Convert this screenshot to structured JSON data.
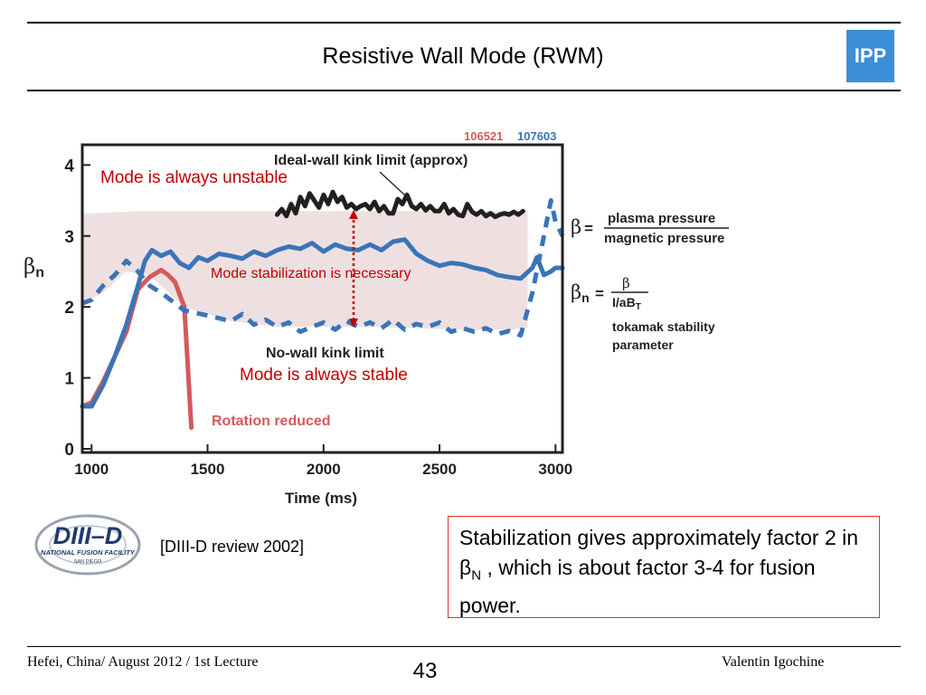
{
  "slide": {
    "title": "Resistive Wall Mode (RWM)",
    "logo_text": "IPP",
    "citation": "[DIII-D review 2002]",
    "summary": {
      "text_before": "Stabilization gives approximately factor 2 in β",
      "subscript": "N",
      "text_after": " , which is about factor 3-4 for fusion power."
    },
    "footer_left": "Hefei, China/ August 2012 / 1st Lecture",
    "page_number": "43",
    "footer_right": "Valentin Igochine"
  },
  "diiid_logo": {
    "main_text": "DIII–D",
    "sub_text": "NATIONAL FUSION FACILITY",
    "sub_text2": "SAN DIEGO"
  },
  "colors": {
    "ideal_wall": "#231f20",
    "rotation_reduced": "#d45a5a",
    "blue_series": "#3a74b8",
    "stable_region_fill": "#eee0e1",
    "annotation_red": "#c00000",
    "ipp_blue": "#3a8fd8"
  },
  "chart_data": {
    "type": "line",
    "xlabel": "Time (ms)",
    "ylabel": "βn",
    "xlim": [
      960,
      3030
    ],
    "ylim": [
      0,
      4.1
    ],
    "x_ticks": [
      1000,
      1500,
      2000,
      2500,
      3000
    ],
    "y_ticks": [
      0,
      1,
      2,
      3,
      4
    ],
    "shot_labels": [
      "106521",
      "107603"
    ],
    "labels": {
      "ideal_wall": "Ideal-wall kink limit (approx)",
      "no_wall": "No-wall kink limit",
      "rotation": "Rotation reduced"
    },
    "annotations": {
      "unstable": "Mode is always unstable",
      "stabilization": "Mode stabilization is necessary",
      "stable": "Mode is always stable"
    },
    "shaded_band": {
      "upper": [
        [
          960,
          3.31
        ],
        [
          1200,
          3.35
        ],
        [
          2800,
          3.35
        ],
        [
          2880,
          3.35
        ]
      ],
      "lower": [
        [
          960,
          2.05
        ],
        [
          1050,
          2.2
        ],
        [
          1150,
          2.5
        ],
        [
          1250,
          2.45
        ],
        [
          1400,
          2.0
        ],
        [
          1600,
          1.8
        ],
        [
          1800,
          1.72
        ],
        [
          2000,
          1.72
        ],
        [
          2200,
          1.72
        ],
        [
          2400,
          1.7
        ],
        [
          2600,
          1.68
        ],
        [
          2800,
          1.68
        ],
        [
          2880,
          1.7
        ]
      ]
    },
    "series": [
      {
        "name": "Ideal-wall kink limit (approx)",
        "color": "#231f20",
        "dash": false,
        "x": [
          1800,
          1820,
          1840,
          1860,
          1880,
          1900,
          1920,
          1940,
          1960,
          1980,
          2000,
          2020,
          2040,
          2060,
          2080,
          2100,
          2120,
          2140,
          2160,
          2180,
          2200,
          2220,
          2240,
          2260,
          2280,
          2300,
          2320,
          2340,
          2360,
          2380,
          2400,
          2420,
          2440,
          2460,
          2480,
          2500,
          2520,
          2540,
          2560,
          2580,
          2600,
          2620,
          2640,
          2660,
          2680,
          2700,
          2720,
          2740,
          2760,
          2780,
          2800,
          2820,
          2840,
          2860
        ],
        "y": [
          3.3,
          3.38,
          3.28,
          3.45,
          3.32,
          3.55,
          3.42,
          3.6,
          3.5,
          3.4,
          3.58,
          3.45,
          3.62,
          3.48,
          3.55,
          3.4,
          3.45,
          3.38,
          3.42,
          3.45,
          3.38,
          3.48,
          3.35,
          3.42,
          3.32,
          3.32,
          3.52,
          3.45,
          3.58,
          3.42,
          3.38,
          3.45,
          3.36,
          3.42,
          3.35,
          3.35,
          3.45,
          3.32,
          3.38,
          3.3,
          3.28,
          3.45,
          3.34,
          3.3,
          3.35,
          3.28,
          3.32,
          3.27,
          3.3,
          3.32,
          3.3,
          3.34,
          3.3,
          3.35
        ]
      },
      {
        "name": "Rotation reduced",
        "color": "#d45a5a",
        "dash": false,
        "x": [
          960,
          1000,
          1050,
          1100,
          1150,
          1200,
          1250,
          1300,
          1330,
          1360,
          1400,
          1430
        ],
        "y": [
          0.6,
          0.65,
          0.95,
          1.3,
          1.65,
          2.25,
          2.42,
          2.52,
          2.45,
          2.35,
          2.0,
          0.3
        ]
      },
      {
        "name": "107603",
        "color": "#3a74b8",
        "dash": false,
        "x": [
          960,
          1000,
          1050,
          1100,
          1150,
          1200,
          1230,
          1260,
          1300,
          1340,
          1380,
          1420,
          1460,
          1500,
          1550,
          1600,
          1650,
          1700,
          1750,
          1800,
          1850,
          1900,
          1950,
          2000,
          2050,
          2100,
          2150,
          2200,
          2250,
          2300,
          2350,
          2400,
          2450,
          2500,
          2550,
          2600,
          2650,
          2700,
          2750,
          2800,
          2850,
          2900,
          2920,
          2950,
          2980,
          3000,
          3030
        ],
        "y": [
          0.6,
          0.6,
          0.9,
          1.3,
          1.75,
          2.3,
          2.65,
          2.8,
          2.72,
          2.78,
          2.62,
          2.55,
          2.7,
          2.65,
          2.75,
          2.72,
          2.68,
          2.78,
          2.72,
          2.8,
          2.85,
          2.82,
          2.9,
          2.78,
          2.88,
          2.82,
          2.8,
          2.88,
          2.8,
          2.92,
          2.95,
          2.75,
          2.65,
          2.58,
          2.62,
          2.6,
          2.55,
          2.52,
          2.45,
          2.42,
          2.4,
          2.55,
          2.7,
          2.45,
          2.5,
          2.55,
          2.55
        ]
      },
      {
        "name": "No-wall kink limit",
        "color": "#3a74b8",
        "dash": true,
        "x": [
          960,
          1000,
          1050,
          1100,
          1150,
          1200,
          1250,
          1300,
          1400,
          1500,
          1600,
          1650,
          1700,
          1750,
          1800,
          1850,
          1900,
          1950,
          2000,
          2050,
          2100,
          2150,
          2200,
          2250,
          2300,
          2350,
          2400,
          2450,
          2500,
          2550,
          2600,
          2650,
          2700,
          2750,
          2800,
          2850,
          2900,
          2950,
          2980,
          3000,
          3030
        ],
        "y": [
          2.05,
          2.1,
          2.3,
          2.45,
          2.65,
          2.5,
          2.3,
          2.2,
          1.95,
          1.88,
          1.8,
          1.9,
          1.75,
          1.82,
          1.72,
          1.78,
          1.65,
          1.72,
          1.78,
          1.68,
          1.8,
          1.72,
          1.78,
          1.7,
          1.82,
          1.68,
          1.76,
          1.72,
          1.78,
          1.65,
          1.7,
          1.65,
          1.7,
          1.62,
          1.66,
          1.6,
          2.2,
          3.0,
          3.5,
          3.2,
          3.0
        ]
      }
    ]
  }
}
